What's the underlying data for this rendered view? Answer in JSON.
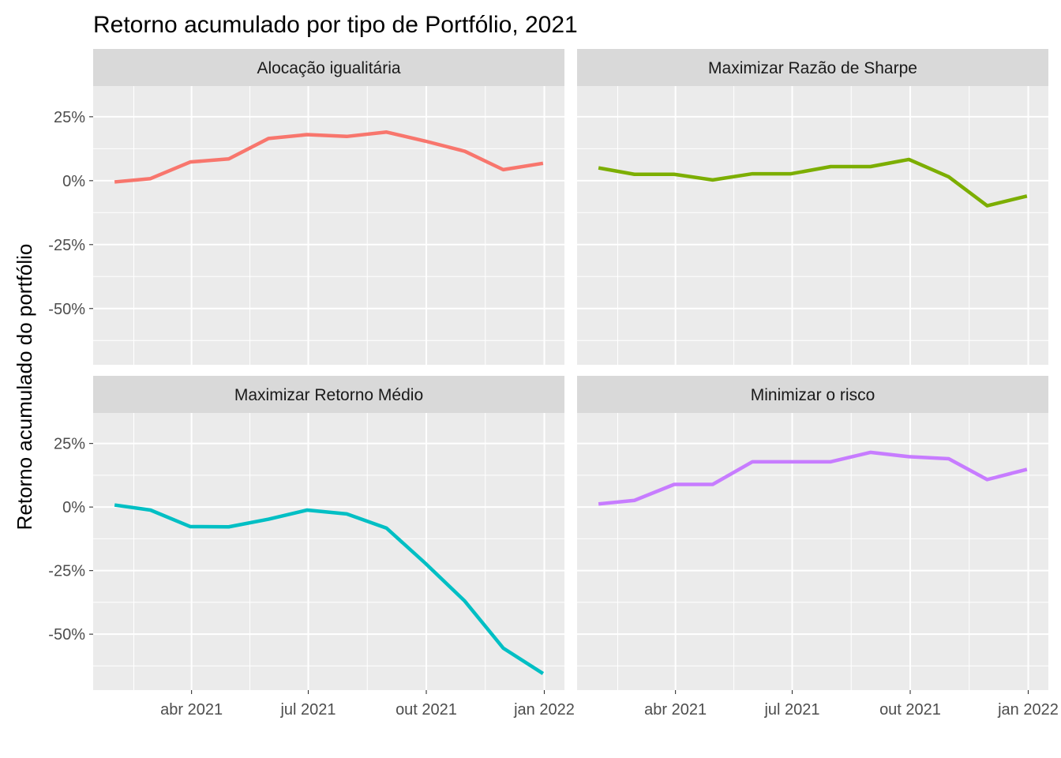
{
  "chart_data": {
    "type": "line",
    "title": "Retorno acumulado por tipo de Portfólio, 2021",
    "xlabel": "",
    "ylabel": "Retorno acumulado do portfólio",
    "x": [
      "2021-01-31",
      "2021-02-28",
      "2021-03-31",
      "2021-04-30",
      "2021-05-31",
      "2021-06-30",
      "2021-07-31",
      "2021-08-31",
      "2021-09-30",
      "2021-10-31",
      "2021-11-30",
      "2021-12-31"
    ],
    "x_tick_labels": [
      "abr 2021",
      "jul 2021",
      "out 2021",
      "jan 2022"
    ],
    "x_tick_dates": [
      "2021-04-01",
      "2021-07-01",
      "2021-10-01",
      "2022-01-01"
    ],
    "y_tick_labels": [
      "25%",
      "0%",
      "-25%",
      "-50%"
    ],
    "y_tick_values": [
      0.25,
      0,
      -0.25,
      -0.5
    ],
    "ylim": [
      -0.72,
      0.37
    ],
    "grid": true,
    "facets": true,
    "series": [
      {
        "name": "Alocação igualitária",
        "color": "#F8766D",
        "values": [
          -0.005,
          0.008,
          0.073,
          0.085,
          0.165,
          0.18,
          0.173,
          0.19,
          0.155,
          0.115,
          0.043,
          0.068
        ]
      },
      {
        "name": "Maximizar Razão de Sharpe",
        "color": "#7CAE00",
        "values": [
          0.05,
          0.025,
          0.025,
          0.003,
          0.027,
          0.027,
          0.055,
          0.055,
          0.083,
          0.015,
          -0.098,
          -0.06
        ]
      },
      {
        "name": "Maximizar Retorno Médio",
        "color": "#00BFC4",
        "values": [
          0.008,
          -0.012,
          -0.077,
          -0.078,
          -0.048,
          -0.012,
          -0.027,
          -0.083,
          -0.22,
          -0.37,
          -0.555,
          -0.655
        ]
      },
      {
        "name": "Minimizar o risco",
        "color": "#C77CFF",
        "values": [
          0.012,
          0.026,
          0.089,
          0.089,
          0.178,
          0.178,
          0.178,
          0.215,
          0.198,
          0.19,
          0.108,
          0.148
        ]
      }
    ]
  }
}
